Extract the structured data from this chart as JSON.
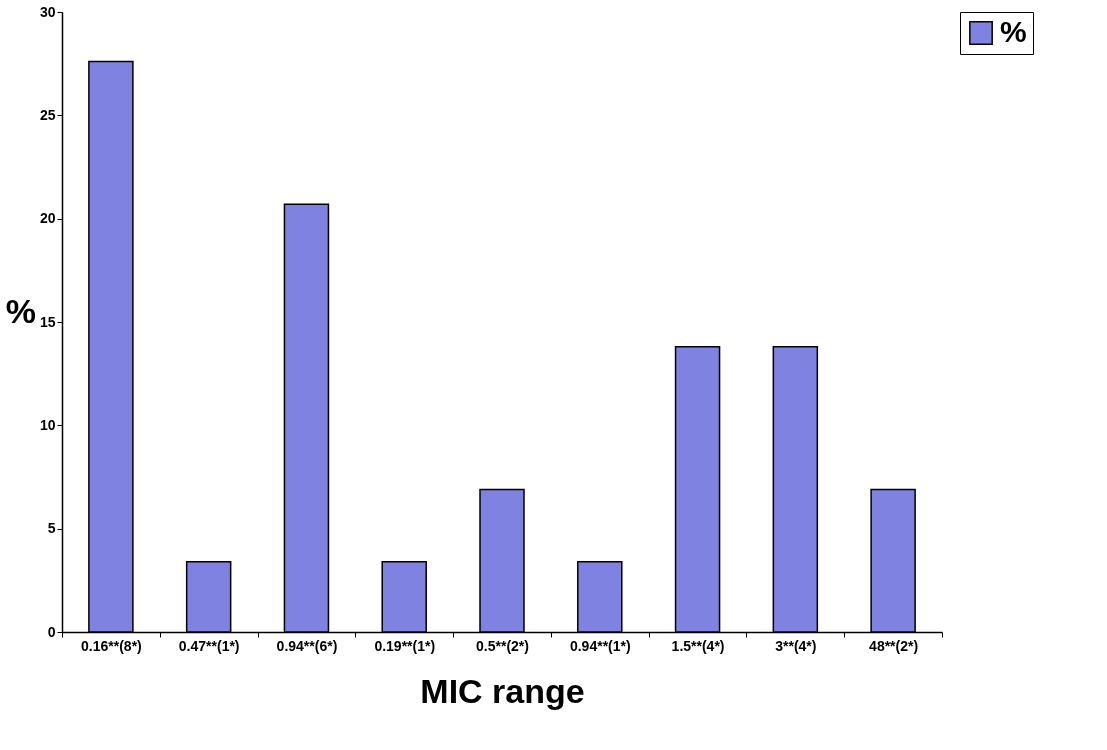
{
  "chart_data": {
    "type": "bar",
    "xlabel": "MIC range",
    "ylabel": "%",
    "categories": [
      "0.16**(8*)",
      "0.47**(1*)",
      "0.94**(6*)",
      "0.19**(1*)",
      "0.5**(2*)",
      "0.94**(1*)",
      "1.5**(4*)",
      "3**(4*)",
      "48**(2*)"
    ],
    "series": [
      {
        "name": "%",
        "color": "#7f82e0",
        "values": [
          27.6,
          3.4,
          20.7,
          3.4,
          6.9,
          3.4,
          13.8,
          13.8,
          6.9
        ]
      }
    ],
    "ylim": [
      0,
      30
    ],
    "yticks": [
      0,
      5,
      10,
      15,
      20,
      25,
      30
    ],
    "grid": false,
    "legend": "right"
  }
}
